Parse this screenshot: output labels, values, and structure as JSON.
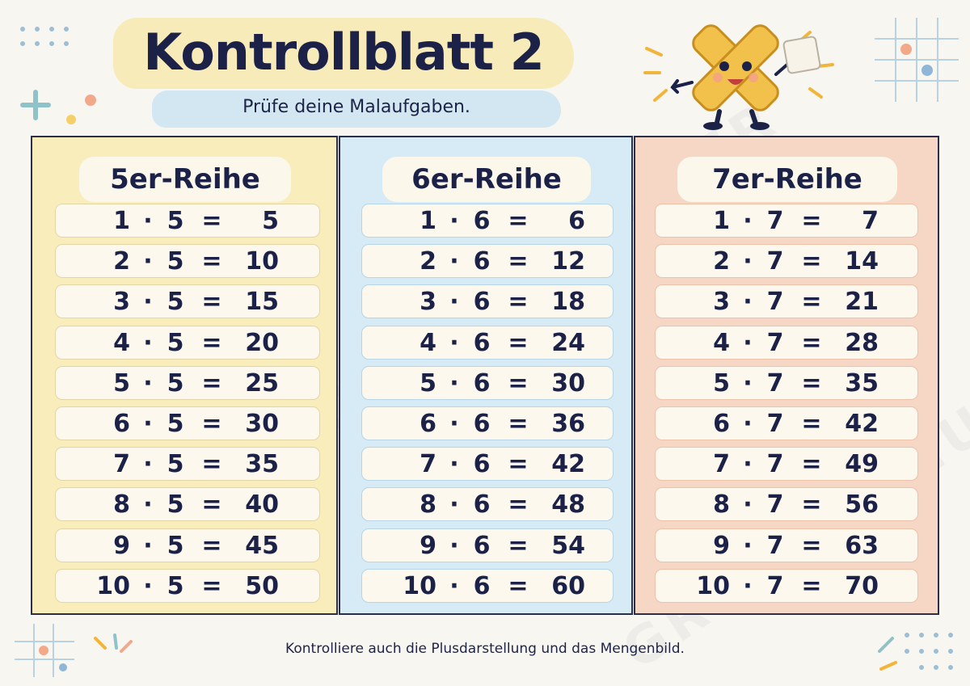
{
  "header": {
    "title": "Kontrollblatt 2",
    "subtitle": "Prüfe deine Malaufgaben."
  },
  "columns": [
    {
      "heading": "5er-Reihe",
      "rows": [
        {
          "a": "1",
          "op": "·",
          "b": "5",
          "eq": "=",
          "result": "5"
        },
        {
          "a": "2",
          "op": "·",
          "b": "5",
          "eq": "=",
          "result": "10"
        },
        {
          "a": "3",
          "op": "·",
          "b": "5",
          "eq": "=",
          "result": "15"
        },
        {
          "a": "4",
          "op": "·",
          "b": "5",
          "eq": "=",
          "result": "20"
        },
        {
          "a": "5",
          "op": "·",
          "b": "5",
          "eq": "=",
          "result": "25"
        },
        {
          "a": "6",
          "op": "·",
          "b": "5",
          "eq": "=",
          "result": "30"
        },
        {
          "a": "7",
          "op": "·",
          "b": "5",
          "eq": "=",
          "result": "35"
        },
        {
          "a": "8",
          "op": "·",
          "b": "5",
          "eq": "=",
          "result": "40"
        },
        {
          "a": "9",
          "op": "·",
          "b": "5",
          "eq": "=",
          "result": "45"
        },
        {
          "a": "10",
          "op": "·",
          "b": "5",
          "eq": "=",
          "result": "50"
        }
      ]
    },
    {
      "heading": "6er-Reihe",
      "rows": [
        {
          "a": "1",
          "op": "·",
          "b": "6",
          "eq": "=",
          "result": "6"
        },
        {
          "a": "2",
          "op": "·",
          "b": "6",
          "eq": "=",
          "result": "12"
        },
        {
          "a": "3",
          "op": "·",
          "b": "6",
          "eq": "=",
          "result": "18"
        },
        {
          "a": "4",
          "op": "·",
          "b": "6",
          "eq": "=",
          "result": "24"
        },
        {
          "a": "5",
          "op": "·",
          "b": "6",
          "eq": "=",
          "result": "30"
        },
        {
          "a": "6",
          "op": "·",
          "b": "6",
          "eq": "=",
          "result": "36"
        },
        {
          "a": "7",
          "op": "·",
          "b": "6",
          "eq": "=",
          "result": "42"
        },
        {
          "a": "8",
          "op": "·",
          "b": "6",
          "eq": "=",
          "result": "48"
        },
        {
          "a": "9",
          "op": "·",
          "b": "6",
          "eq": "=",
          "result": "54"
        },
        {
          "a": "10",
          "op": "·",
          "b": "6",
          "eq": "=",
          "result": "60"
        }
      ]
    },
    {
      "heading": "7er-Reihe",
      "rows": [
        {
          "a": "1",
          "op": "·",
          "b": "7",
          "eq": "=",
          "result": "7"
        },
        {
          "a": "2",
          "op": "·",
          "b": "7",
          "eq": "=",
          "result": "14"
        },
        {
          "a": "3",
          "op": "·",
          "b": "7",
          "eq": "=",
          "result": "21"
        },
        {
          "a": "4",
          "op": "·",
          "b": "7",
          "eq": "=",
          "result": "28"
        },
        {
          "a": "5",
          "op": "·",
          "b": "7",
          "eq": "=",
          "result": "35"
        },
        {
          "a": "6",
          "op": "·",
          "b": "7",
          "eq": "=",
          "result": "42"
        },
        {
          "a": "7",
          "op": "·",
          "b": "7",
          "eq": "=",
          "result": "49"
        },
        {
          "a": "8",
          "op": "·",
          "b": "7",
          "eq": "=",
          "result": "56"
        },
        {
          "a": "9",
          "op": "·",
          "b": "7",
          "eq": "=",
          "result": "63"
        },
        {
          "a": "10",
          "op": "·",
          "b": "7",
          "eq": "=",
          "result": "70"
        }
      ]
    }
  ],
  "footer": "Kontrolliere auch die Plusdarstellung und das Mengenbild.",
  "watermark": "GRUNDSCHULZAUBER",
  "colors": {
    "column_5": "#f8edbb",
    "column_6": "#d6ebf5",
    "column_7": "#f6d6c5",
    "text": "#1b2147",
    "mascot": "#f2c14b"
  },
  "mascot_icon": "multiplication-x-mascot-icon"
}
